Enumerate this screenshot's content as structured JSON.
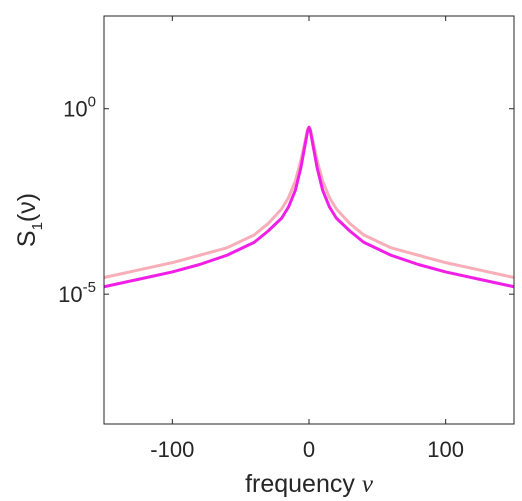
{
  "chart_data": {
    "type": "line",
    "xlabel": "frequency",
    "xlabel_symbol": "ν",
    "ylabel_base": "S",
    "ylabel_sub": "1",
    "ylabel_arg": "(ν)",
    "xlim": [
      -150,
      150
    ],
    "ylim_log10": [
      -8.5,
      2.5
    ],
    "y_scale": "log",
    "grid": false,
    "legend": "none",
    "x_ticks": [
      -100,
      0,
      100
    ],
    "x_tick_labels": [
      "-100",
      "0",
      "100"
    ],
    "y_ticks_log10": [
      0,
      -5
    ],
    "y_tick_labels": [
      {
        "base": "10",
        "exp": "0"
      },
      {
        "base": "10",
        "exp": "-5"
      }
    ],
    "series": [
      {
        "color": "#f7aeb8",
        "x": [
          -150,
          -125,
          -100,
          -80,
          -60,
          -40,
          -30,
          -20,
          -15,
          -10,
          -6,
          -3,
          -1,
          0,
          1,
          3,
          6,
          10,
          15,
          20,
          30,
          40,
          60,
          80,
          100,
          125,
          150
        ],
        "y_log10": [
          -4.55,
          -4.35,
          -4.15,
          -3.95,
          -3.75,
          -3.4,
          -3.1,
          -2.7,
          -2.4,
          -1.95,
          -1.4,
          -0.9,
          -0.55,
          -0.5,
          -0.55,
          -0.9,
          -1.4,
          -1.95,
          -2.4,
          -2.7,
          -3.1,
          -3.4,
          -3.75,
          -3.95,
          -4.15,
          -4.35,
          -4.55
        ]
      },
      {
        "color": "#f01ee6",
        "x": [
          -150,
          -125,
          -100,
          -80,
          -60,
          -40,
          -30,
          -20,
          -15,
          -10,
          -6,
          -3,
          -1,
          0,
          1,
          3,
          6,
          10,
          15,
          20,
          30,
          40,
          60,
          80,
          100,
          125,
          150
        ],
        "y_log10": [
          -4.8,
          -4.6,
          -4.4,
          -4.2,
          -3.95,
          -3.6,
          -3.3,
          -2.95,
          -2.65,
          -2.2,
          -1.6,
          -1.0,
          -0.6,
          -0.5,
          -0.6,
          -1.0,
          -1.6,
          -2.2,
          -2.65,
          -2.95,
          -3.3,
          -3.6,
          -3.95,
          -4.2,
          -4.4,
          -4.6,
          -4.8
        ]
      }
    ]
  }
}
